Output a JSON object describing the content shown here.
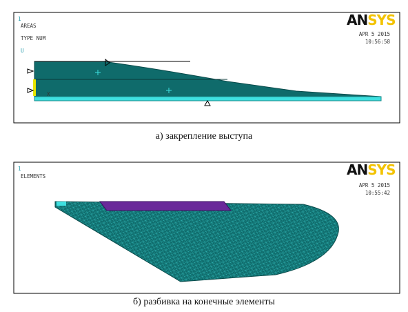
{
  "panel_a": {
    "number": "1",
    "label1": "AREAS",
    "label2": "TYPE NUM",
    "axis_mark": "U",
    "origin_mark": "X",
    "logo": [
      "AN",
      "SYS"
    ],
    "date": "APR  5 2015",
    "time": "10:56:58",
    "caption": "а) закрепление выступа"
  },
  "panel_b": {
    "number": "1",
    "label1": "ELEMENTS",
    "logo": [
      "AN",
      "SYS"
    ],
    "date": "APR  5 2015",
    "time": "10:55:42",
    "caption": "б) разбивка на конечные элементы"
  }
}
